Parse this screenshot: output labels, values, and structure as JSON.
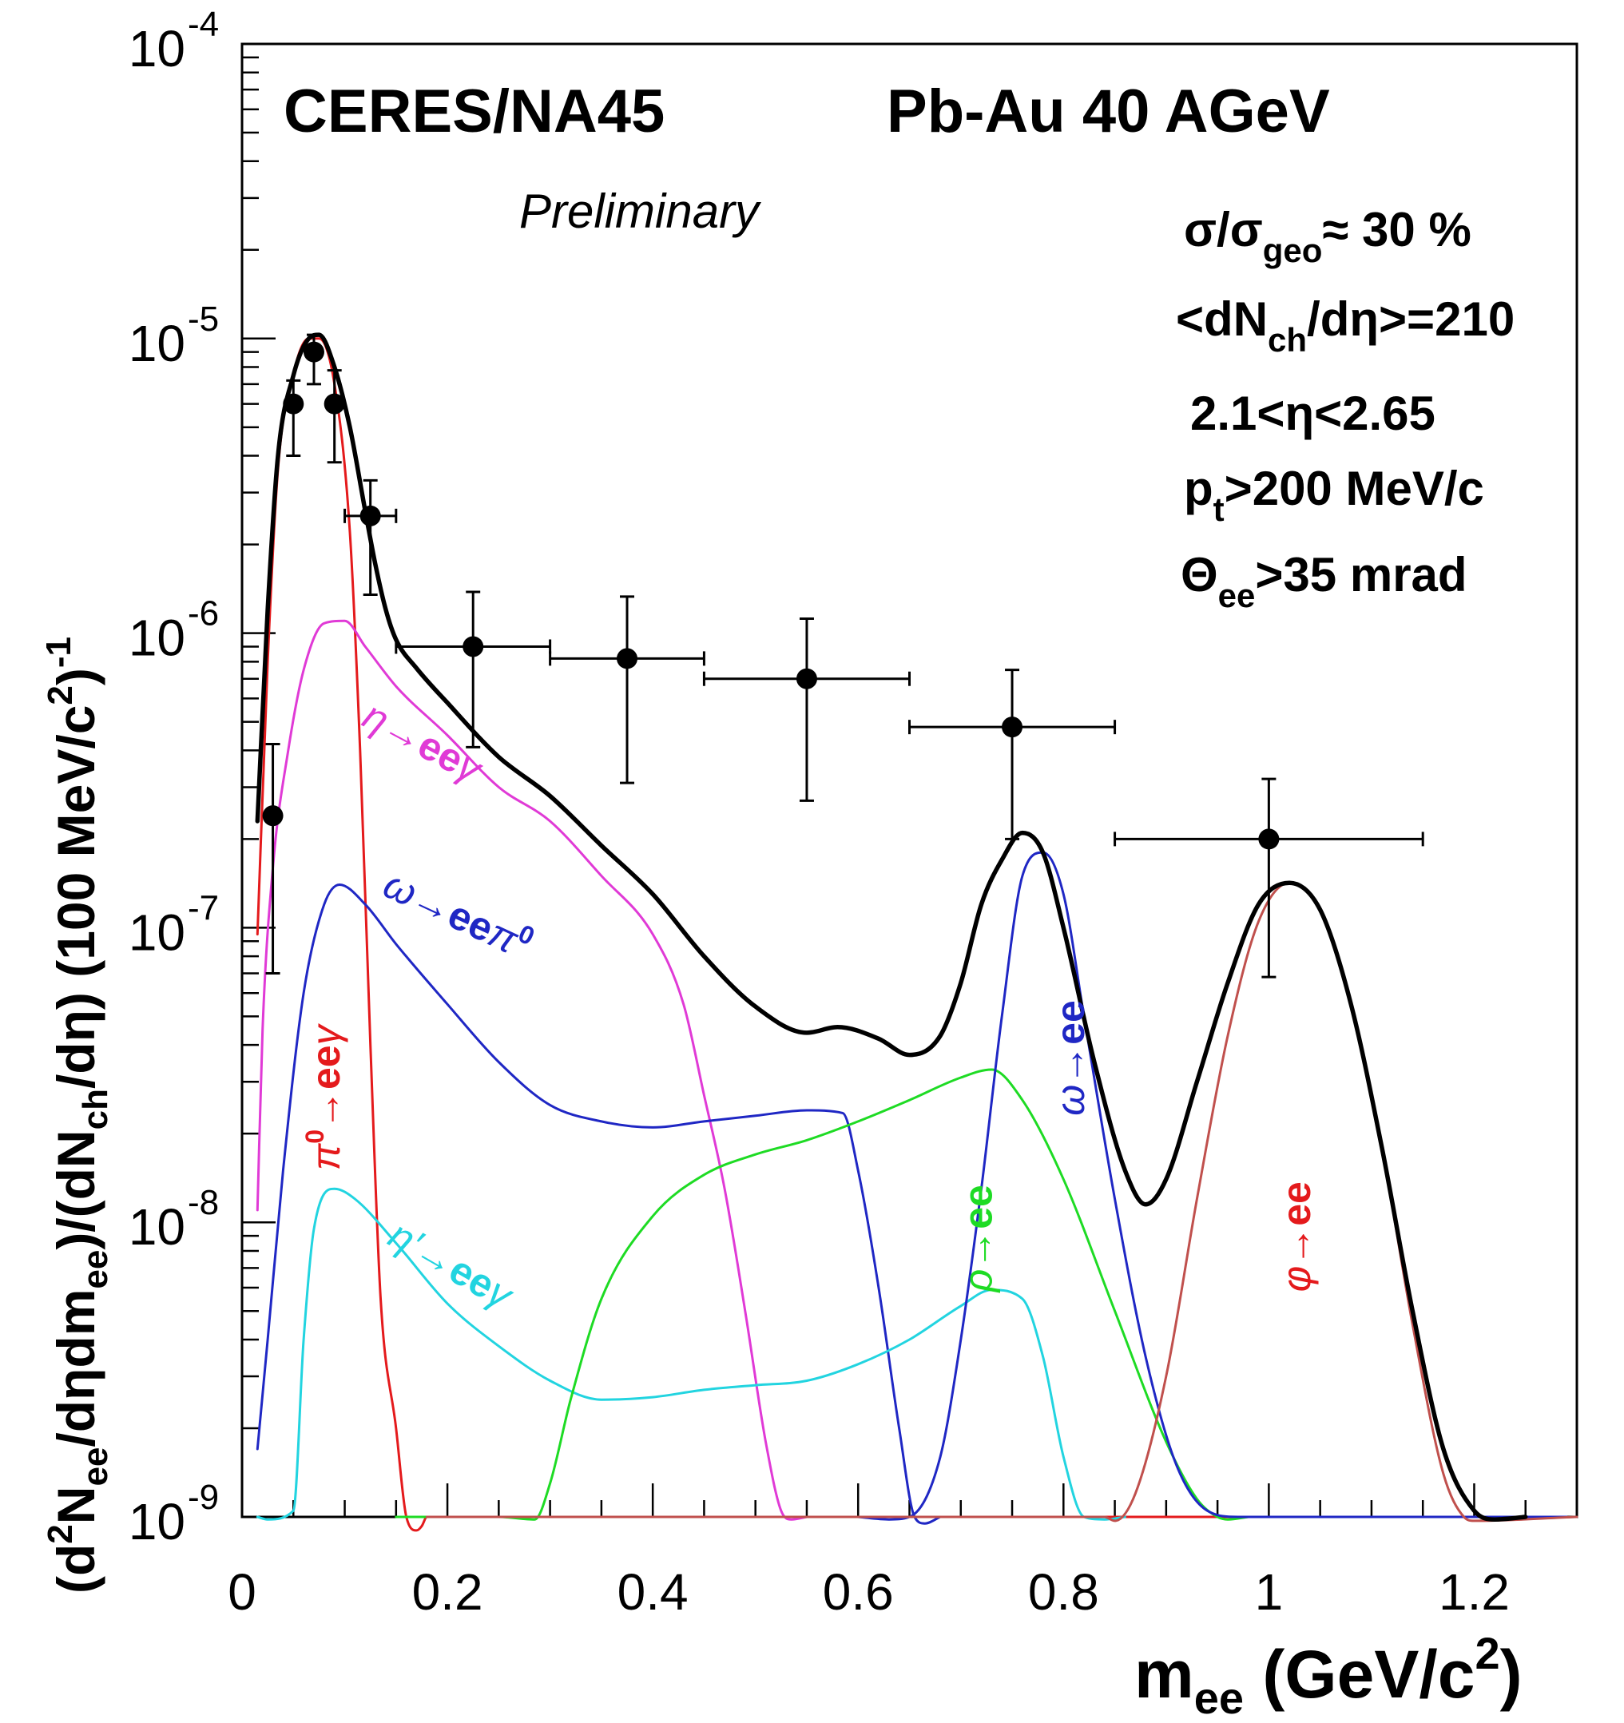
{
  "chart_data": {
    "type": "line",
    "title_left": "CERES/NA45",
    "title_right": "Pb-Au 40 AGeV",
    "subtitle": "Preliminary",
    "xlabel": {
      "main": "m",
      "sub": "ee",
      "rest": " (GeV/c",
      "sup": "2",
      "end": ")"
    },
    "ylabel": {
      "p1": "(d",
      "sup1": "2",
      "p2": "N",
      "sub1": "ee",
      "p3": "/dηdm",
      "sub2": "ee",
      "p4": ")/(dN",
      "sub3": "ch",
      "p5": "/dη) (100 MeV/c",
      "sup2": "2",
      "p6": ")",
      "sup3": "-1"
    },
    "xlim": [
      0,
      1.3
    ],
    "ylim": [
      1e-09,
      0.0001
    ],
    "yscale": "log",
    "x_ticks": [
      {
        "value": 0,
        "label": "0"
      },
      {
        "value": 0.2,
        "label": "0.2"
      },
      {
        "value": 0.4,
        "label": "0.4"
      },
      {
        "value": 0.6,
        "label": "0.6"
      },
      {
        "value": 0.8,
        "label": "0.8"
      },
      {
        "value": 1.0,
        "label": "1"
      },
      {
        "value": 1.2,
        "label": "1.2"
      }
    ],
    "y_ticks": [
      {
        "value": 1e-09,
        "base": "10",
        "exp": "-9"
      },
      {
        "value": 1e-08,
        "base": "10",
        "exp": "-8"
      },
      {
        "value": 1e-07,
        "base": "10",
        "exp": "-7"
      },
      {
        "value": 1e-06,
        "base": "10",
        "exp": "-6"
      },
      {
        "value": 1e-05,
        "base": "10",
        "exp": "-5"
      },
      {
        "value": 0.0001,
        "base": "10",
        "exp": "-4"
      }
    ],
    "info_lines": [
      {
        "parts": [
          {
            "t": "σ/σ",
            "s": "n"
          },
          {
            "t": "geo",
            "s": "sub"
          },
          {
            "t": "≈ 30 %",
            "s": "n"
          }
        ]
      },
      {
        "parts": [
          {
            "t": "<dN",
            "s": "n"
          },
          {
            "t": "ch",
            "s": "sub"
          },
          {
            "t": "/dη>=210",
            "s": "n"
          }
        ]
      },
      {
        "parts": [
          {
            "t": "2.1<η<2.65",
            "s": "n"
          }
        ]
      },
      {
        "parts": [
          {
            "t": "p",
            "s": "n"
          },
          {
            "t": "t",
            "s": "sub"
          },
          {
            "t": ">200 MeV/c",
            "s": "n"
          }
        ]
      },
      {
        "parts": [
          {
            "t": "Θ",
            "s": "n"
          },
          {
            "t": "ee",
            "s": "sub"
          },
          {
            "t": ">35 mrad",
            "s": "n"
          }
        ]
      }
    ],
    "data_points": [
      {
        "x": 0.03,
        "y": 2.4e-07,
        "xerr": 0.0,
        "ylo": 7e-08,
        "yhi": 4.2e-07
      },
      {
        "x": 0.05,
        "y": 6e-06,
        "xerr": 0.0,
        "ylo": 4e-06,
        "yhi": 7.2e-06
      },
      {
        "x": 0.07,
        "y": 9e-06,
        "xerr": 0.0,
        "ylo": 7e-06,
        "yhi": 1.03e-05
      },
      {
        "x": 0.09,
        "y": 6e-06,
        "xerr": 0.0,
        "ylo": 3.8e-06,
        "yhi": 7.8e-06
      },
      {
        "x": 0.125,
        "y": 2.5e-06,
        "xerr": 0.025,
        "ylo": 1.35e-06,
        "yhi": 3.3e-06
      },
      {
        "x": 0.225,
        "y": 9e-07,
        "xerr": 0.075,
        "ylo": 4.1e-07,
        "yhi": 1.38e-06
      },
      {
        "x": 0.375,
        "y": 8.2e-07,
        "xerr": 0.075,
        "ylo": 3.1e-07,
        "yhi": 1.33e-06
      },
      {
        "x": 0.55,
        "y": 7e-07,
        "xerr": 0.1,
        "ylo": 2.7e-07,
        "yhi": 1.12e-06
      },
      {
        "x": 0.75,
        "y": 4.8e-07,
        "xerr": 0.1,
        "ylo": 2e-07,
        "yhi": 7.5e-07
      },
      {
        "x": 1.0,
        "y": 2e-07,
        "xerr": 0.15,
        "ylo": 6.8e-08,
        "yhi": 3.2e-07
      }
    ],
    "series": [
      {
        "name": "total",
        "color": "#000000",
        "width": 5.5,
        "points": [
          [
            0.015,
            2.3e-07
          ],
          [
            0.025,
            1.2e-06
          ],
          [
            0.035,
            4e-06
          ],
          [
            0.05,
            7.5e-06
          ],
          [
            0.065,
            1e-05
          ],
          [
            0.075,
            1.03e-05
          ],
          [
            0.09,
            8e-06
          ],
          [
            0.105,
            5e-06
          ],
          [
            0.12,
            2.6e-06
          ],
          [
            0.13,
            1.7e-06
          ],
          [
            0.14,
            1.2e-06
          ],
          [
            0.15,
            9.5e-07
          ],
          [
            0.17,
            7.6e-07
          ],
          [
            0.2,
            5.8e-07
          ],
          [
            0.25,
            3.8e-07
          ],
          [
            0.3,
            2.8e-07
          ],
          [
            0.35,
            1.9e-07
          ],
          [
            0.4,
            1.3e-07
          ],
          [
            0.45,
            8e-08
          ],
          [
            0.5,
            5.4e-08
          ],
          [
            0.55,
            4.4e-08
          ],
          [
            0.58,
            4.6e-08
          ],
          [
            0.62,
            4.2e-08
          ],
          [
            0.65,
            3.7e-08
          ],
          [
            0.68,
            4.3e-08
          ],
          [
            0.7,
            6.5e-08
          ],
          [
            0.72,
            1.2e-07
          ],
          [
            0.74,
            1.7e-07
          ],
          [
            0.76,
            2.1e-07
          ],
          [
            0.78,
            1.8e-07
          ],
          [
            0.8,
            1e-07
          ],
          [
            0.83,
            3.5e-08
          ],
          [
            0.86,
            1.5e-08
          ],
          [
            0.88,
            1.15e-08
          ],
          [
            0.9,
            1.4e-08
          ],
          [
            0.93,
            3e-08
          ],
          [
            0.96,
            6.5e-08
          ],
          [
            0.99,
            1.2e-07
          ],
          [
            1.02,
            1.42e-07
          ],
          [
            1.05,
            1.15e-07
          ],
          [
            1.08,
            5.5e-08
          ],
          [
            1.11,
            1.8e-08
          ],
          [
            1.14,
            5e-09
          ],
          [
            1.17,
            1.7e-09
          ],
          [
            1.2,
            1.05e-09
          ],
          [
            1.22,
            9.8e-10
          ],
          [
            1.25,
            1e-09
          ]
        ]
      },
      {
        "name": "pi0",
        "color": "#e41a1c",
        "width": 3,
        "points": [
          [
            0.015,
            9.5e-08
          ],
          [
            0.025,
            8e-07
          ],
          [
            0.035,
            3.6e-06
          ],
          [
            0.05,
            7.6e-06
          ],
          [
            0.065,
            1e-05
          ],
          [
            0.075,
            1e-05
          ],
          [
            0.09,
            7e-06
          ],
          [
            0.105,
            2.2e-06
          ],
          [
            0.115,
            4e-07
          ],
          [
            0.125,
            4e-08
          ],
          [
            0.135,
            5.5e-09
          ],
          [
            0.15,
            2e-09
          ],
          [
            0.16,
            1e-09
          ],
          [
            0.17,
            9e-10
          ],
          [
            0.175,
            9.3e-10
          ],
          [
            0.18,
            1e-09
          ],
          [
            1.29,
            1e-09
          ]
        ]
      },
      {
        "name": "eta",
        "color": "#e03ad6",
        "width": 3,
        "points": [
          [
            0.015,
            1.1e-08
          ],
          [
            0.02,
            4.5e-08
          ],
          [
            0.03,
            1.6e-07
          ],
          [
            0.045,
            4e-07
          ],
          [
            0.06,
            7.5e-07
          ],
          [
            0.08,
            1.08e-06
          ],
          [
            0.1,
            1.1e-06
          ],
          [
            0.12,
            9e-07
          ],
          [
            0.15,
            6.6e-07
          ],
          [
            0.2,
            4.5e-07
          ],
          [
            0.25,
            3e-07
          ],
          [
            0.3,
            2.3e-07
          ],
          [
            0.35,
            1.5e-07
          ],
          [
            0.4,
            9.5e-08
          ],
          [
            0.43,
            5.5e-08
          ],
          [
            0.45,
            2.7e-08
          ],
          [
            0.47,
            1.3e-08
          ],
          [
            0.49,
            5e-09
          ],
          [
            0.51,
            1.8e-09
          ],
          [
            0.525,
            1.05e-09
          ],
          [
            0.535,
            9.8e-10
          ],
          [
            0.55,
            1e-09
          ]
        ]
      },
      {
        "name": "omega_dalitz",
        "color": "#1f27c4",
        "width": 3,
        "points": [
          [
            0.015,
            1.7e-09
          ],
          [
            0.025,
            4e-09
          ],
          [
            0.04,
            1.5e-08
          ],
          [
            0.06,
            6e-08
          ],
          [
            0.08,
            1.2e-07
          ],
          [
            0.095,
            1.4e-07
          ],
          [
            0.12,
            1.2e-07
          ],
          [
            0.15,
            8.8e-08
          ],
          [
            0.2,
            5.5e-08
          ],
          [
            0.25,
            3.5e-08
          ],
          [
            0.3,
            2.5e-08
          ],
          [
            0.35,
            2.2e-08
          ],
          [
            0.4,
            2.1e-08
          ],
          [
            0.45,
            2.2e-08
          ],
          [
            0.5,
            2.3e-08
          ],
          [
            0.55,
            2.4e-08
          ],
          [
            0.585,
            2.35e-08
          ],
          [
            0.6,
            1.5e-08
          ],
          [
            0.62,
            6e-09
          ],
          [
            0.64,
            2e-09
          ],
          [
            0.655,
            1e-09
          ],
          [
            0.665,
            9.5e-10
          ],
          [
            0.68,
            1e-09
          ]
        ]
      },
      {
        "name": "etaprime",
        "color": "#22d4e0",
        "width": 3,
        "points": [
          [
            0.015,
            1e-09
          ],
          [
            0.025,
            9.8e-10
          ],
          [
            0.05,
            1.05e-09
          ],
          [
            0.06,
            4e-09
          ],
          [
            0.07,
            9.5e-09
          ],
          [
            0.09,
            1.3e-08
          ],
          [
            0.11,
            1.2e-08
          ],
          [
            0.15,
            8.5e-09
          ],
          [
            0.2,
            5.3e-09
          ],
          [
            0.25,
            3.8e-09
          ],
          [
            0.3,
            2.9e-09
          ],
          [
            0.35,
            2.5e-09
          ],
          [
            0.4,
            2.55e-09
          ],
          [
            0.45,
            2.7e-09
          ],
          [
            0.5,
            2.8e-09
          ],
          [
            0.55,
            2.9e-09
          ],
          [
            0.6,
            3.3e-09
          ],
          [
            0.65,
            4e-09
          ],
          [
            0.7,
            5.2e-09
          ],
          [
            0.73,
            5.9e-09
          ],
          [
            0.76,
            5.5e-09
          ],
          [
            0.78,
            3.5e-09
          ],
          [
            0.8,
            1.6e-09
          ],
          [
            0.82,
            1e-09
          ],
          [
            0.84,
            9.8e-10
          ],
          [
            0.86,
            1e-09
          ]
        ]
      },
      {
        "name": "rho",
        "color": "#1edb24",
        "width": 3,
        "points": [
          [
            0.15,
            1e-09
          ],
          [
            0.25,
            1e-09
          ],
          [
            0.285,
            9.8e-10
          ],
          [
            0.3,
            1.3e-09
          ],
          [
            0.32,
            2.5e-09
          ],
          [
            0.35,
            5.5e-09
          ],
          [
            0.4,
            1.05e-08
          ],
          [
            0.45,
            1.45e-08
          ],
          [
            0.5,
            1.7e-08
          ],
          [
            0.55,
            1.9e-08
          ],
          [
            0.6,
            2.2e-08
          ],
          [
            0.65,
            2.6e-08
          ],
          [
            0.7,
            3.1e-08
          ],
          [
            0.73,
            3.3e-08
          ],
          [
            0.76,
            2.6e-08
          ],
          [
            0.8,
            1.4e-08
          ],
          [
            0.85,
            5e-09
          ],
          [
            0.9,
            1.8e-09
          ],
          [
            0.93,
            1.15e-09
          ],
          [
            0.95,
            1e-09
          ],
          [
            0.96,
            9.8e-10
          ],
          [
            0.98,
            1e-09
          ]
        ]
      },
      {
        "name": "omega",
        "color": "#1f27c4",
        "width": 3,
        "points": [
          [
            0.6,
            1e-09
          ],
          [
            0.63,
            9.8e-10
          ],
          [
            0.65,
            1e-09
          ],
          [
            0.68,
            1.6e-09
          ],
          [
            0.7,
            4e-09
          ],
          [
            0.72,
            1.3e-08
          ],
          [
            0.74,
            5e-08
          ],
          [
            0.76,
            1.5e-07
          ],
          [
            0.78,
            1.8e-07
          ],
          [
            0.8,
            1.3e-07
          ],
          [
            0.82,
            5e-08
          ],
          [
            0.85,
            1.2e-08
          ],
          [
            0.88,
            3.5e-09
          ],
          [
            0.91,
            1.5e-09
          ],
          [
            0.94,
            1.05e-09
          ],
          [
            0.97,
            1e-09
          ],
          [
            1.29,
            1e-09
          ]
        ]
      },
      {
        "name": "phi",
        "color": "#c0504d",
        "width": 3,
        "points": [
          [
            0.18,
            1e-09
          ],
          [
            0.8,
            1e-09
          ],
          [
            0.84,
            1e-09
          ],
          [
            0.85,
            9.7e-10
          ],
          [
            0.87,
            1.2e-09
          ],
          [
            0.9,
            3e-09
          ],
          [
            0.93,
            1.2e-08
          ],
          [
            0.96,
            4.3e-08
          ],
          [
            0.99,
            1.05e-07
          ],
          [
            1.02,
            1.42e-07
          ],
          [
            1.05,
            1.15e-07
          ],
          [
            1.08,
            5.5e-08
          ],
          [
            1.11,
            1.8e-08
          ],
          [
            1.14,
            4.5e-09
          ],
          [
            1.17,
            1.4e-09
          ],
          [
            1.19,
            1e-09
          ],
          [
            1.2,
            9.7e-10
          ],
          [
            1.3,
            1e-09
          ]
        ]
      }
    ],
    "curve_labels": [
      {
        "text_main": "η",
        "text_arrow": "→",
        "text_b": "ee",
        "text_g": "γ",
        "color": "#e03ad6",
        "x": 0.115,
        "y": 4.9e-07,
        "rot": 28
      },
      {
        "text_main": "ω",
        "text_arrow": "→",
        "text_b": "ee",
        "text_g": "π",
        "text_sup": "0",
        "color": "#1f27c4",
        "x": 0.135,
        "y": 1.3e-07,
        "rot": 25
      },
      {
        "text_main": "π",
        "text_sup": "0",
        "text_arrow": "→",
        "text_b": "ee",
        "text_g": "γ",
        "color": "#e41a1c",
        "x": 0.095,
        "y": 1.5e-08,
        "rot": -90
      },
      {
        "text_main": "η′",
        "text_arrow": "→",
        "text_b": "ee",
        "text_g": "γ",
        "color": "#22d4e0",
        "x": 0.14,
        "y": 8.5e-09,
        "rot": 30
      },
      {
        "text_main": "ρ",
        "text_arrow": "→",
        "text_b": "ee",
        "color": "#1edb24",
        "x": 0.73,
        "y": 5.8e-09,
        "rot": -90
      },
      {
        "text_main": "ω",
        "text_arrow": "→",
        "text_b": "ee",
        "color": "#1f27c4",
        "x": 0.82,
        "y": 2.3e-08,
        "rot": -90
      },
      {
        "text_main": "φ",
        "text_arrow": "→",
        "text_b": "ee",
        "color": "#e41a1c",
        "x": 1.04,
        "y": 5.8e-09,
        "rot": -90
      }
    ]
  }
}
